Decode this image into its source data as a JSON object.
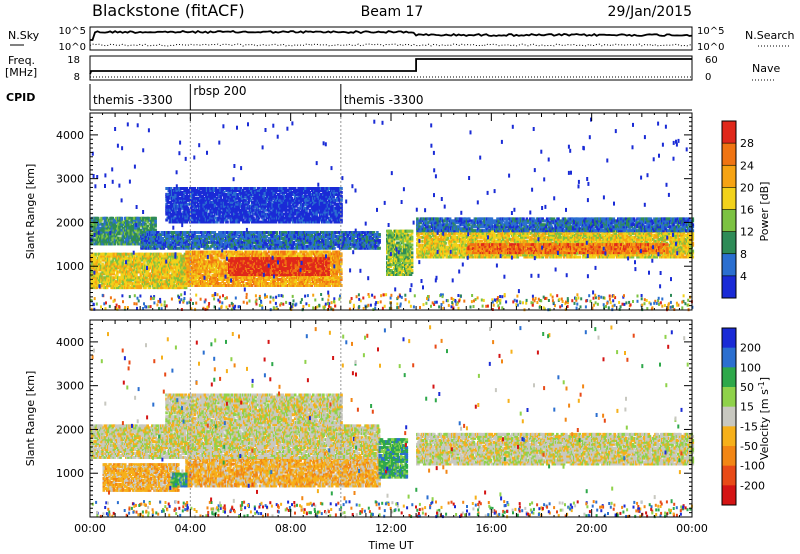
{
  "header": {
    "station": "Blackstone (fitACF)",
    "beam": "Beam 17",
    "date": "29/Jan/2015"
  },
  "top_panels": {
    "nsky_label": "N.Sky",
    "nsearch_label": "N.Search",
    "freq_label": "Freq.",
    "freq_unit": "[MHz]",
    "nave_label": "Nave",
    "cpid_label": "CPID",
    "noise_ticks": [
      "10^5",
      "10^0"
    ],
    "freq_ticks": [
      "18",
      "8"
    ],
    "nave_ticks": [
      "60",
      "0"
    ]
  },
  "cpid_segments": [
    {
      "label": "themis -3300",
      "start_hour": 0,
      "end_hour": 4
    },
    {
      "label": "rbsp 200",
      "start_hour": 4,
      "end_hour": 10
    },
    {
      "label": "themis -3300",
      "start_hour": 10,
      "end_hour": 24
    }
  ],
  "colors": {
    "power_scale": [
      "#1a2bd6",
      "#2b6fd0",
      "#2e8b57",
      "#7cc242",
      "#f2d21b",
      "#f6a313",
      "#f07412",
      "#e0281b"
    ],
    "velocity_scale": [
      "#1a2bd6",
      "#2b6fd0",
      "#2ea84a",
      "#8fd24a",
      "#c8c8c0",
      "#f6b01a",
      "#f28614",
      "#e84a17",
      "#d41414"
    ]
  },
  "chart_data": [
    {
      "type": "heatmap",
      "name_panel": "power",
      "xlabel": "",
      "ylabel": "Slant Range [km]",
      "xlim": [
        0,
        24
      ],
      "ylim": [
        0,
        4500
      ],
      "x_ticks": [
        "00:00",
        "04:00",
        "08:00",
        "12:00",
        "16:00",
        "20:00",
        "00:00"
      ],
      "x_tick_hours": [
        0,
        4,
        8,
        12,
        16,
        20,
        24
      ],
      "y_ticks": [
        1000,
        2000,
        3000,
        4000
      ],
      "colorbar_label": "Power [dB]",
      "colorbar_ticks": [
        "4",
        "8",
        "12",
        "16",
        "20",
        "24",
        "28"
      ],
      "colorbar_range": [
        0,
        32
      ],
      "regions": [
        {
          "t0": 0.0,
          "t1": 3.8,
          "r0": 500,
          "r1": 1300,
          "level": 4
        },
        {
          "t0": 3.8,
          "t1": 10.0,
          "r0": 550,
          "r1": 1350,
          "level": 5
        },
        {
          "t0": 5.5,
          "t1": 9.5,
          "r0": 800,
          "r1": 1200,
          "level": 7
        },
        {
          "t0": 0.0,
          "t1": 2.6,
          "r0": 1500,
          "r1": 2100,
          "level": 2
        },
        {
          "t0": 2.0,
          "t1": 11.5,
          "r0": 1400,
          "r1": 1800,
          "level": 1
        },
        {
          "t0": 13.0,
          "t1": 24.0,
          "r0": 1200,
          "r1": 1800,
          "level": 4
        },
        {
          "t0": 15.0,
          "t1": 23.0,
          "r0": 1300,
          "r1": 1500,
          "level": 6
        },
        {
          "t0": 13.0,
          "t1": 24.0,
          "r0": 1800,
          "r1": 2100,
          "level": 1
        },
        {
          "t0": 3.0,
          "t1": 10.0,
          "r0": 2000,
          "r1": 2800,
          "level": 0
        },
        {
          "t0": 11.8,
          "t1": 12.8,
          "r0": 800,
          "r1": 1800,
          "level": 3
        }
      ]
    },
    {
      "type": "heatmap",
      "name_panel": "velocity",
      "xlabel": "Time UT",
      "ylabel": "Slant Range [km]",
      "xlim": [
        0,
        24
      ],
      "ylim": [
        0,
        4500
      ],
      "x_ticks": [
        "00:00",
        "04:00",
        "08:00",
        "12:00",
        "16:00",
        "20:00",
        "00:00"
      ],
      "x_tick_hours": [
        0,
        4,
        8,
        12,
        16,
        20,
        24
      ],
      "y_ticks": [
        1000,
        2000,
        3000,
        4000
      ],
      "colorbar_label": "Velocity [m s^-1]",
      "colorbar_ticks": [
        "200",
        "100",
        "50",
        "15",
        "-15",
        "-50",
        "-100",
        "-200"
      ],
      "regions": [
        {
          "t0": 0.5,
          "t1": 3.5,
          "r0": 600,
          "r1": 1200,
          "level": 5
        },
        {
          "t0": 3.8,
          "t1": 11.5,
          "r0": 700,
          "r1": 1350,
          "level": 5
        },
        {
          "t0": 0.0,
          "t1": 11.5,
          "r0": 1350,
          "r1": 2100,
          "level": 4
        },
        {
          "t0": 13.0,
          "t1": 24.0,
          "r0": 1200,
          "r1": 1900,
          "level": 4
        },
        {
          "t0": 3.0,
          "t1": 10.0,
          "r0": 2100,
          "r1": 2800,
          "level": 4
        },
        {
          "t0": 11.5,
          "t1": 12.6,
          "r0": 900,
          "r1": 1800,
          "level": 2
        },
        {
          "t0": 3.2,
          "t1": 3.8,
          "r0": 700,
          "r1": 1000,
          "level": 2
        }
      ]
    }
  ]
}
